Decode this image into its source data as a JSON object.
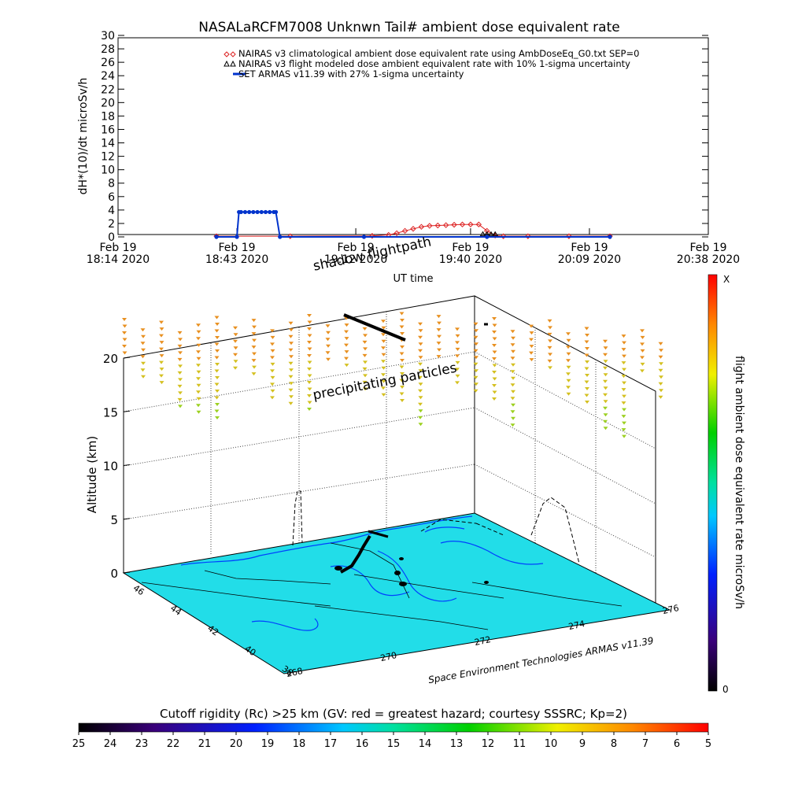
{
  "chart_data": [
    {
      "type": "line",
      "title": "NASALaRCFM7008  Unknwn Tail#  ambient dose equivalent rate",
      "xlabel": "UT time",
      "ylabel": "dH*(10)/dt microSv/h",
      "ylim": [
        0,
        30
      ],
      "yticks": [
        0,
        2,
        4,
        6,
        8,
        10,
        12,
        14,
        16,
        18,
        20,
        22,
        24,
        26,
        28,
        30
      ],
      "x_ticks": [
        {
          "line1": "Feb 19",
          "line2": "18:14 2020",
          "t": 0
        },
        {
          "line1": "Feb 19",
          "line2": "18:43 2020",
          "t": 29
        },
        {
          "line1": "Feb 19",
          "line2": "19:12 2020",
          "t": 58
        },
        {
          "line1": "Feb 19",
          "line2": "19:40 2020",
          "t": 86
        },
        {
          "line1": "Feb 19",
          "line2": "20:09 2020",
          "t": 115
        },
        {
          "line1": "Feb 19",
          "line2": "20:38 2020",
          "t": 144
        }
      ],
      "xlim": [
        0,
        144
      ],
      "legend_position": "top-right",
      "series": [
        {
          "name": "NAIRAS v3 climatological ambient dose equivalent rate using AmbDoseEq_G0.txt SEP=0",
          "color": "#dd2222",
          "marker": "diamond",
          "x": [
            24,
            42,
            62,
            66,
            68,
            70,
            72,
            74,
            76,
            78,
            80,
            82,
            84,
            86,
            88,
            90,
            92,
            94,
            100,
            110,
            120
          ],
          "y": [
            0.1,
            0.1,
            0.15,
            0.3,
            0.55,
            0.9,
            1.2,
            1.5,
            1.65,
            1.7,
            1.75,
            1.8,
            1.85,
            1.85,
            1.85,
            0.9,
            0.2,
            0.1,
            0.1,
            0.1,
            0.1
          ]
        },
        {
          "name": "NAIRAS v3 flight modeled dose ambient equivalent rate with 10% 1-sigma uncertainty",
          "color": "#000000",
          "marker": "triangle",
          "x": [
            89,
            90,
            91,
            92
          ],
          "y": [
            0.4,
            0.4,
            0.4,
            0.4
          ]
        },
        {
          "name": "SET ARMAS v11.39 with 27% 1-sigma uncertainty",
          "color": "#0033cc",
          "marker": "filled-circle",
          "x": [
            24,
            29,
            29.5,
            30,
            31,
            32,
            33,
            34,
            35,
            36,
            37,
            38,
            38.5,
            39.5,
            60,
            90,
            120
          ],
          "y": [
            0,
            0,
            3.7,
            3.7,
            3.7,
            3.7,
            3.7,
            3.7,
            3.7,
            3.7,
            3.7,
            3.7,
            3.7,
            0,
            0,
            0,
            0
          ]
        }
      ]
    },
    {
      "type": "scatter",
      "title": "",
      "zlabel": "Altitude (km)",
      "zticks": [
        0,
        5,
        10,
        15,
        20
      ],
      "lat_ticks": [
        38,
        40,
        42,
        44,
        46
      ],
      "lon_ticks": [
        268,
        270,
        272,
        274,
        276
      ],
      "credit": "Space Environment Technologies ARMAS v11.39",
      "annotations": [
        "shadow flightpath",
        "precipitating particles"
      ],
      "colorbar": {
        "label": "flight ambient dose equivalent rate microSv/h",
        "top_label": "X",
        "bottom_label": "0"
      }
    },
    {
      "type": "heatmap",
      "title": "Cutoff rigidity (Rc) >25 km (GV: red = greatest hazard; courtesy SSSRC; Kp=2)",
      "colorbar_ticks": [
        25,
        24,
        23,
        22,
        21,
        20,
        19,
        18,
        17,
        16,
        15,
        14,
        13,
        12,
        11,
        10,
        9,
        8,
        7,
        6,
        5
      ]
    }
  ]
}
